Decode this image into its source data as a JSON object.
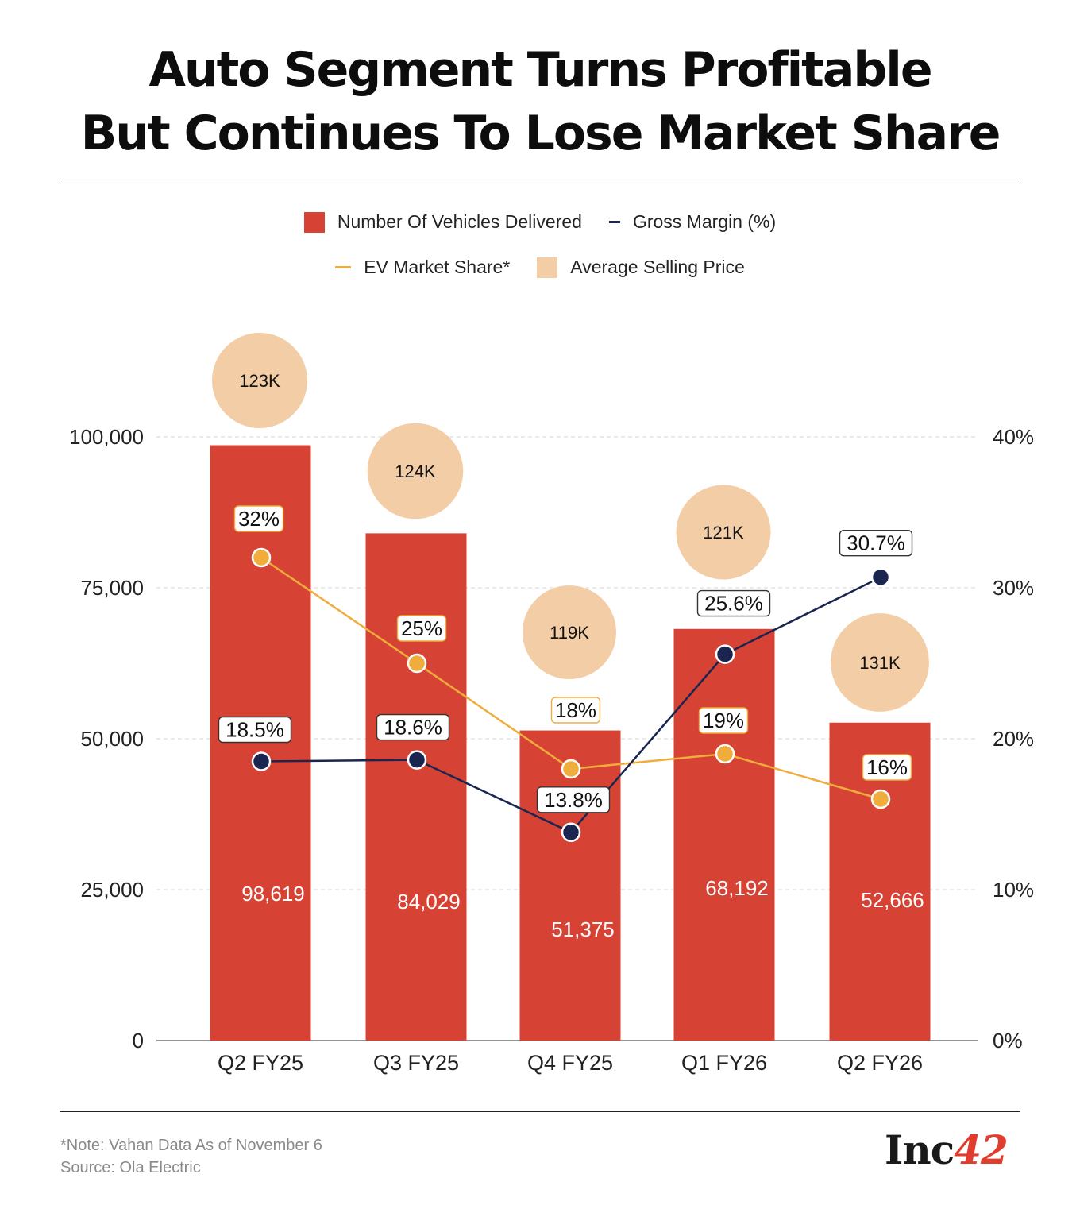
{
  "header": {
    "title_line1": "Auto Segment Turns Profitable",
    "title_line2": "But Continues To Lose Market Share"
  },
  "legend": {
    "vehicles": "Number Of Vehicles Delivered",
    "gross_margin": "Gross Margin (%)",
    "ev_share": "EV Market Share*",
    "asp": "Average Selling Price"
  },
  "colors": {
    "bar": "#d64334",
    "gross_margin": "#1a2550",
    "ev_share": "#f0ad3c",
    "asp": "#f2cda6",
    "grid": "#d6d6d6"
  },
  "footer": {
    "note": "*Note: Vahan Data As of November 6",
    "source": "Source: Ola Electric",
    "brand_text": "Inc",
    "brand_number": "42"
  },
  "chart_data": {
    "type": "bar",
    "categories": [
      "Q2 FY25",
      "Q3 FY25",
      "Q4 FY25",
      "Q1 FY26",
      "Q2 FY26"
    ],
    "left_axis": {
      "ylim": [
        0,
        100000
      ],
      "ticks": [
        "0",
        "25,000",
        "50,000",
        "75,000",
        "100,000"
      ],
      "tick_values": [
        0,
        25000,
        50000,
        75000,
        100000
      ]
    },
    "right_axis": {
      "ylim": [
        0,
        40
      ],
      "ticks": [
        "0%",
        "10%",
        "20%",
        "30%",
        "40%"
      ],
      "tick_values": [
        0,
        10,
        20,
        30,
        40
      ]
    },
    "series": [
      {
        "name": "Number Of Vehicles Delivered",
        "kind": "bar",
        "axis": "left",
        "values": [
          98619,
          84029,
          51375,
          68192,
          52666
        ],
        "labels": [
          "98,619",
          "84,029",
          "51,375",
          "68,192",
          "52,666"
        ]
      },
      {
        "name": "Gross Margin (%)",
        "kind": "line",
        "axis": "right",
        "values": [
          18.5,
          18.6,
          13.8,
          25.6,
          30.7
        ],
        "labels": [
          "18.5%",
          "18.6%",
          "13.8%",
          "25.6%",
          "30.7%"
        ]
      },
      {
        "name": "EV Market Share*",
        "kind": "line",
        "axis": "right",
        "values": [
          32,
          25,
          18,
          19,
          16
        ],
        "labels": [
          "32%",
          "25%",
          "18%",
          "19%",
          "16%"
        ]
      },
      {
        "name": "Average Selling Price",
        "kind": "bubble",
        "values": [
          123000,
          124000,
          119000,
          121000,
          131000
        ],
        "labels": [
          "123K",
          "124K",
          "119K",
          "121K",
          "131K"
        ]
      }
    ]
  }
}
